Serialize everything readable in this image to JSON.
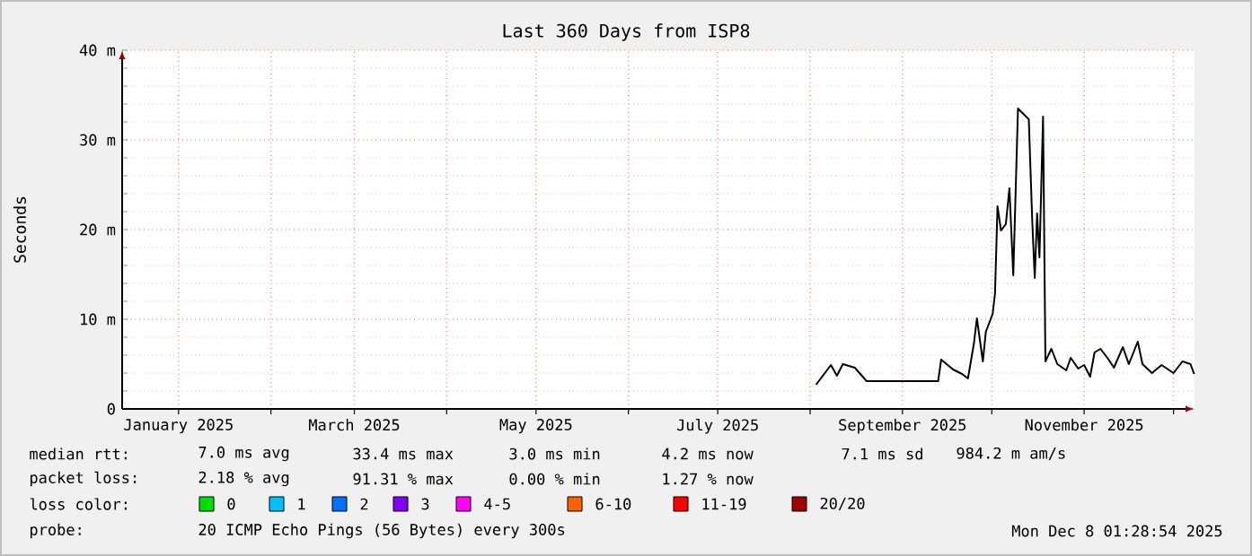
{
  "chart_data": {
    "type": "line",
    "title": "Last 360 Days from ISP8",
    "ylabel": "Seconds",
    "xlim": [
      "2024-12-13T01:28",
      "2025-12-08T01:28"
    ],
    "xticks": [
      {
        "value": "2025-01-01",
        "label": "January 2025"
      },
      {
        "value": "2025-02-01",
        "label": null
      },
      {
        "value": "2025-03-01",
        "label": "March 2025"
      },
      {
        "value": "2025-04-01",
        "label": null
      },
      {
        "value": "2025-05-01",
        "label": "May 2025"
      },
      {
        "value": "2025-06-01",
        "label": null
      },
      {
        "value": "2025-07-01",
        "label": "July 2025"
      },
      {
        "value": "2025-08-01",
        "label": null
      },
      {
        "value": "2025-09-01",
        "label": "September 2025"
      },
      {
        "value": "2025-10-01",
        "label": null
      },
      {
        "value": "2025-11-01",
        "label": "November 2025"
      },
      {
        "value": "2025-12-01",
        "label": null
      }
    ],
    "ylim": [
      0,
      40
    ],
    "yticks": [
      0,
      {
        "value": 10,
        "label": "10 m"
      },
      {
        "value": 20,
        "label": "20 m"
      },
      {
        "value": 30,
        "label": "30 m"
      },
      {
        "value": 40,
        "label": "40 m"
      }
    ],
    "grid": true,
    "x": [
      "2025-08-03",
      "2025-08-08",
      "2025-08-10",
      "2025-08-12",
      "2025-08-16",
      "2025-08-20",
      "2025-09-13",
      "2025-09-14",
      "2025-09-18",
      "2025-09-21",
      "2025-09-23",
      "2025-09-25",
      "2025-09-26",
      "2025-09-28",
      "2025-09-29",
      "2025-10-01T07:00",
      "2025-10-02T02:00",
      "2025-10-02T22:00",
      "2025-10-04T02:00",
      "2025-10-05T17:00",
      "2025-10-06T22:00",
      "2025-10-08T05:00",
      "2025-10-09T19:00",
      "2025-10-13T10:00",
      "2025-10-14T14:00",
      "2025-10-15T10:00",
      "2025-10-16T05:00",
      "2025-10-17T00:00",
      "2025-10-18T05:00",
      "2025-10-19",
      "2025-10-21",
      "2025-10-23",
      "2025-10-26",
      "2025-10-27T12:00",
      "2025-10-30",
      "2025-11-01",
      "2025-11-03",
      "2025-11-04T12:00",
      "2025-11-06T12:00",
      "2025-11-09",
      "2025-11-11",
      "2025-11-14",
      "2025-11-16",
      "2025-11-19",
      "2025-11-20T14:00",
      "2025-11-23T19:00",
      "2025-11-27",
      "2025-12-01",
      "2025-12-04",
      "2025-12-06T17:00",
      "2025-12-07T22:00"
    ],
    "series": [
      {
        "color": "#000000",
        "values": [
          2.7,
          4.9,
          3.7,
          5.0,
          4.6,
          3.1,
          3.1,
          5.5,
          4.4,
          3.9,
          3.4,
          7.3,
          10.1,
          5.3,
          8.6,
          10.6,
          12.9,
          22.6,
          19.9,
          20.6,
          24.6,
          14.9,
          33.5,
          32.3,
          20.9,
          14.6,
          21.8,
          16.9,
          32.6,
          5.3,
          6.7,
          5.0,
          4.3,
          5.7,
          4.5,
          4.9,
          3.6,
          6.3,
          6.7,
          5.6,
          4.6,
          6.9,
          5.0,
          7.5,
          5.0,
          4.0,
          4.9,
          4.0,
          5.3,
          5.0,
          3.9
        ]
      }
    ],
    "annotations": [
      "median rtt:",
      "7.0 ms avg",
      "33.4 ms max",
      "3.0 ms min",
      "4.2 ms now",
      "7.1 ms sd",
      "984.2 m am/s",
      "packet loss:",
      "2.18 % avg",
      "91.31 % max",
      "0.00 % min",
      "1.27 % now",
      "loss color:",
      "0",
      "1",
      "2",
      "3",
      "4-5",
      "6-10",
      "11-19",
      "20/20",
      "probe:",
      "20 ICMP Echo Pings (56 Bytes) every 300s",
      "Mon Dec  8 01:28:54 2025"
    ]
  }
}
